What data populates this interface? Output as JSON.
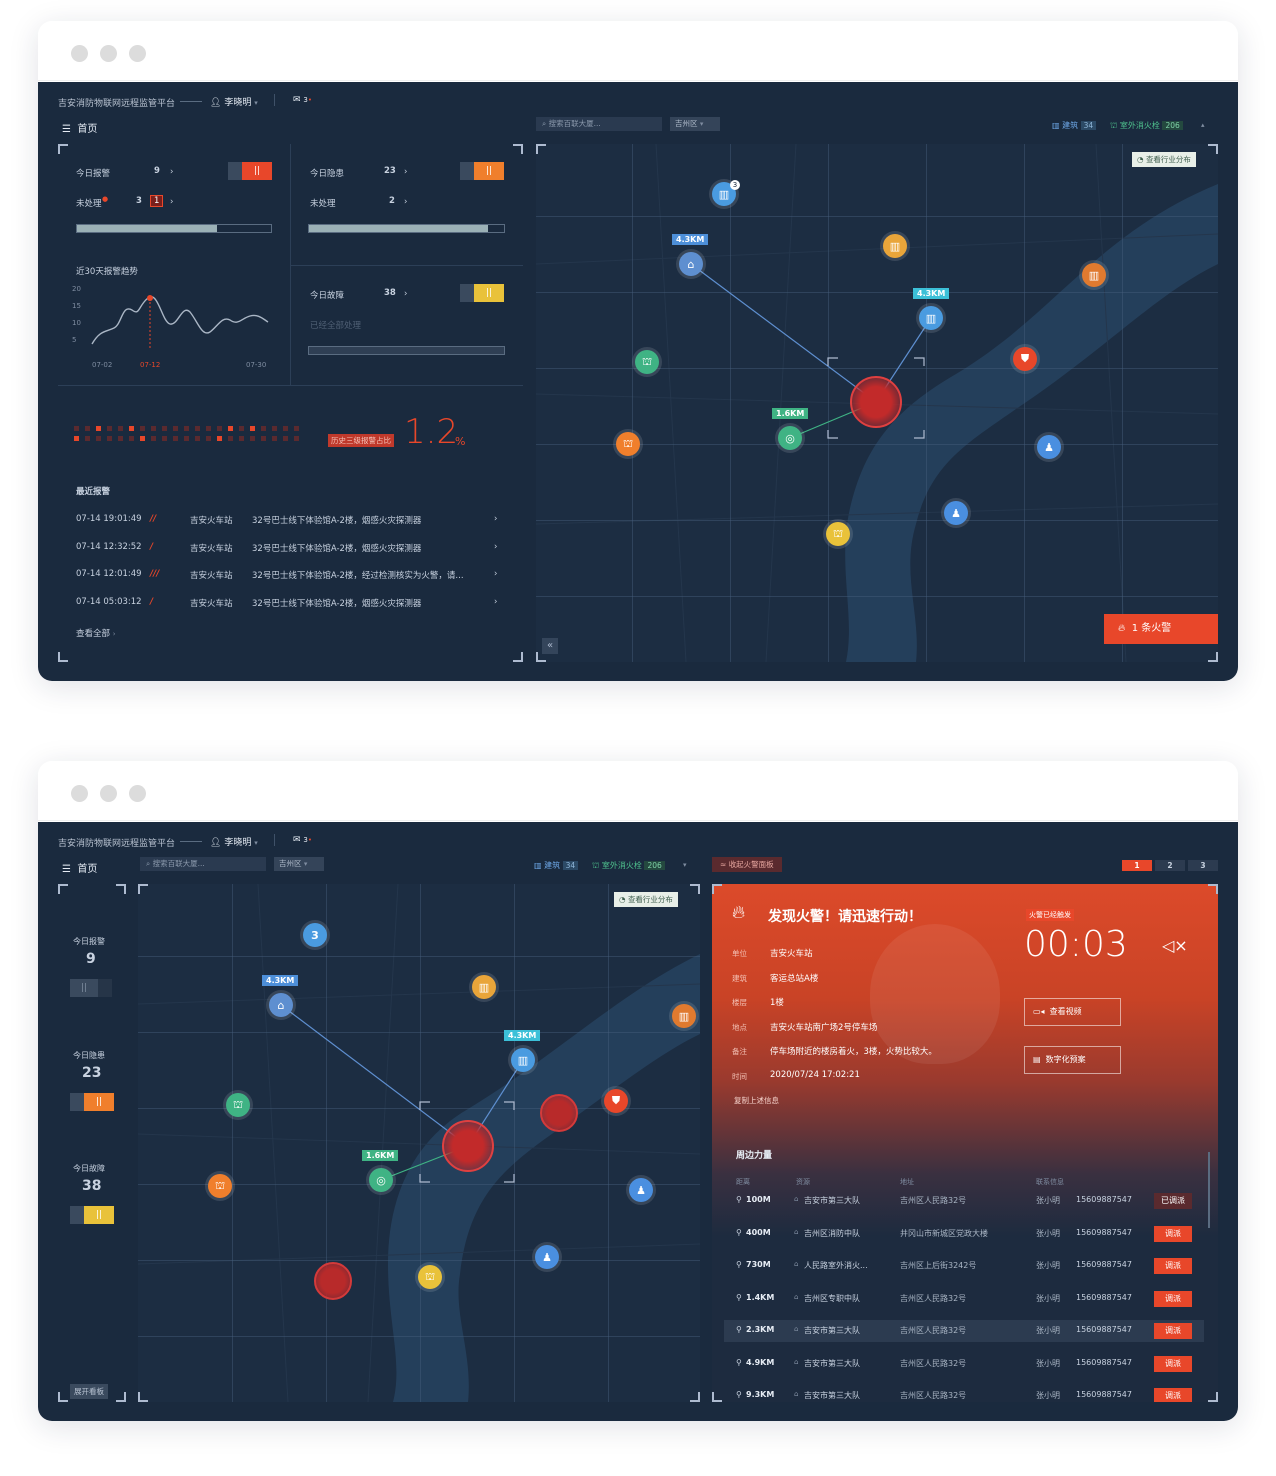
{
  "header": {
    "platform_title": "吉安消防物联网远程监管平台",
    "user_name": "李晓明",
    "mail_count": "3",
    "home_label": "首页"
  },
  "search": {
    "placeholder": "搜索百联大厦...",
    "district": "吉州区"
  },
  "layer_toggles": {
    "building_label": "建筑",
    "building_count": "34",
    "hydrant_label": "室外消火栓",
    "hydrant_count": "206"
  },
  "map": {
    "industry_button": "查看行业分布",
    "distances": [
      "4.3KM",
      "4.3KM",
      "1.6KM"
    ],
    "fire_alert_button": "1 条火警",
    "cluster_count": "3"
  },
  "stats": {
    "alarm_label": "今日报警",
    "alarm_value": "9",
    "unhandled_label": "未处理",
    "unhandled_value": "3",
    "unhandled_badge": "1",
    "hazard_label": "今日隐患",
    "hazard_value": "23",
    "hazard_unhandled_label": "未处理",
    "hazard_unhandled_value": "2",
    "fault_label": "今日故障",
    "fault_value": "38",
    "fault_status": "已经全部处理",
    "alarm_bar": 0.72,
    "hazard_bar": 0.92
  },
  "trend": {
    "title": "近30天报警趋势",
    "y_ticks": [
      "20",
      "15",
      "10",
      "5"
    ],
    "x_ticks": [
      "07-02",
      "07-12",
      "07-30"
    ]
  },
  "ratio": {
    "label": "历史三级报警占比",
    "value": "1.2",
    "unit": "%"
  },
  "recent": {
    "title": "最近报警",
    "view_all": "查看全部",
    "rows": [
      {
        "time": "07-14 19:01:49",
        "level": "//",
        "site": "吉安火车站",
        "desc": "32号巴士线下体验馆A-2楼，烟感火灾探测器"
      },
      {
        "time": "07-14 12:32:52",
        "level": "/",
        "site": "吉安火车站",
        "desc": "32号巴士线下体验馆A-2楼，烟感火灾探测器"
      },
      {
        "time": "07-14 12:01:49",
        "level": "///",
        "site": "吉安火车站",
        "desc": "32号巴士线下体验馆A-2楼，经过检测核实为火警，请..."
      },
      {
        "time": "07-14 05:03:12",
        "level": "/",
        "site": "吉安火车站",
        "desc": "32号巴士线下体验馆A-2楼，烟感火灾探测器"
      }
    ]
  },
  "sidebar2": {
    "alarm_label": "今日报警",
    "alarm_value": "9",
    "hazard_label": "今日隐患",
    "hazard_value": "23",
    "fault_label": "今日故障",
    "fault_value": "38",
    "expand_label": "展开看板"
  },
  "fire_panel": {
    "collapse_label": "收起火警面板",
    "tabs": [
      "1",
      "2",
      "3"
    ],
    "headline": "发现火警！请迅速行动！",
    "triggered_badge": "火警已经触发",
    "timer": "00:03",
    "fields": [
      {
        "k": "单位",
        "v": "吉安火车站"
      },
      {
        "k": "建筑",
        "v": "客运总站A楼"
      },
      {
        "k": "楼层",
        "v": "1楼"
      },
      {
        "k": "地点",
        "v": "吉安火车站南广场2号停车场"
      },
      {
        "k": "备注",
        "v": "停车场附近的楼房着火，3楼，火势比较大。"
      },
      {
        "k": "时间",
        "v": "2020/07/24 17:02:21"
      }
    ],
    "copy_label": "复制上述信息",
    "video_button": "查看视频",
    "plan_button": "数字化预案",
    "nearby_title": "周边力量",
    "cols": [
      "距离",
      "资源",
      "地址",
      "联系信息"
    ],
    "rows": [
      {
        "dist": "100M",
        "res": "吉安市第三大队",
        "addr": "吉州区人民路32号",
        "name": "张小明",
        "phone": "15609887547",
        "action": "已调派"
      },
      {
        "dist": "400M",
        "res": "吉州区消防中队",
        "addr": "井冈山市新城区党政大楼",
        "name": "张小明",
        "phone": "15609887547",
        "action": "调派"
      },
      {
        "dist": "730M",
        "res": "人民路室外消火...",
        "addr": "吉州区上后街3242号",
        "name": "张小明",
        "phone": "15609887547",
        "action": "调派"
      },
      {
        "dist": "1.4KM",
        "res": "吉州区专职中队",
        "addr": "吉州区人民路32号",
        "name": "张小明",
        "phone": "15609887547",
        "action": "调派"
      },
      {
        "dist": "2.3KM",
        "res": "吉安市第三大队",
        "addr": "吉州区人民路32号",
        "name": "张小明",
        "phone": "15609887547",
        "action": "调派"
      },
      {
        "dist": "4.9KM",
        "res": "吉安市第三大队",
        "addr": "吉州区人民路32号",
        "name": "张小明",
        "phone": "15609887547",
        "action": "调派"
      },
      {
        "dist": "9.3KM",
        "res": "吉安市第三大队",
        "addr": "吉州区人民路32号",
        "name": "张小明",
        "phone": "15609887547",
        "action": "调派"
      }
    ]
  },
  "colors": {
    "accent_red": "#e8472a",
    "orange": "#f07f2c",
    "yellow": "#e9c23a",
    "bg": "#1a2a3e"
  }
}
